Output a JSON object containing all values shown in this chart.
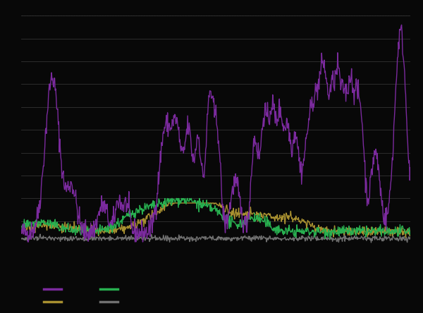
{
  "background_color": "#080808",
  "plot_bg_color": "#080808",
  "grid_color": "#444444",
  "line_colors": {
    "bitcoin": "#7B2A9E",
    "gold": "#28B050",
    "bitcoin_30d": "#A89030",
    "gold_30d": "#707070"
  },
  "ylim": [
    0,
    1.0
  ],
  "n_points": 756,
  "grid_linestyle": "-",
  "grid_alpha": 0.7,
  "line_width": 1.0,
  "top_dash_color": "#333333"
}
